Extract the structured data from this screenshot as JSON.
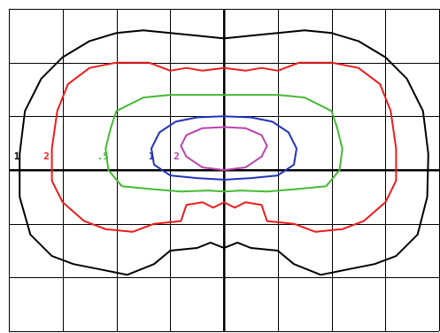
{
  "chart_data": {
    "type": "contour",
    "grid": true,
    "xlim": [
      -4,
      4
    ],
    "ylim": [
      -3,
      3
    ],
    "x_gridlines": [
      -4,
      -3,
      -2,
      -1,
      0,
      1,
      2,
      3,
      4
    ],
    "y_gridlines": [
      -3,
      -2,
      -1,
      0,
      1,
      2,
      3
    ],
    "levels": [
      {
        "label": "1",
        "color": "#000000",
        "label_at": [
          -3.85,
          0.2
        ],
        "points": [
          [
            0.0,
            2.45
          ],
          [
            0.5,
            2.5
          ],
          [
            1.0,
            2.55
          ],
          [
            1.5,
            2.6
          ],
          [
            2.0,
            2.55
          ],
          [
            2.5,
            2.4
          ],
          [
            3.0,
            2.1
          ],
          [
            3.4,
            1.7
          ],
          [
            3.7,
            1.1
          ],
          [
            3.8,
            0.3
          ],
          [
            3.78,
            -0.5
          ],
          [
            3.6,
            -1.2
          ],
          [
            3.2,
            -1.6
          ],
          [
            2.8,
            -1.75
          ],
          [
            2.3,
            -1.85
          ],
          [
            1.8,
            -1.95
          ],
          [
            1.3,
            -1.75
          ],
          [
            1.0,
            -1.5
          ],
          [
            0.5,
            -1.45
          ],
          [
            0.25,
            -1.35
          ],
          [
            0.0,
            -1.45
          ],
          [
            -0.25,
            -1.35
          ],
          [
            -0.5,
            -1.45
          ],
          [
            -1.0,
            -1.5
          ],
          [
            -1.3,
            -1.75
          ],
          [
            -1.8,
            -1.95
          ],
          [
            -2.3,
            -1.85
          ],
          [
            -2.8,
            -1.75
          ],
          [
            -3.2,
            -1.6
          ],
          [
            -3.6,
            -1.2
          ],
          [
            -3.8,
            -0.5
          ],
          [
            -3.8,
            0.3
          ],
          [
            -3.7,
            1.1
          ],
          [
            -3.4,
            1.7
          ],
          [
            -3.0,
            2.1
          ],
          [
            -2.5,
            2.4
          ],
          [
            -2.0,
            2.55
          ],
          [
            -1.5,
            2.6
          ],
          [
            -1.0,
            2.55
          ],
          [
            -0.5,
            2.5
          ],
          [
            0.0,
            2.45
          ]
        ]
      },
      {
        "label": "2",
        "color": "#ee1c1c",
        "label_at": [
          -3.3,
          0.2
        ],
        "points": [
          [
            0.0,
            1.9
          ],
          [
            0.4,
            1.85
          ],
          [
            0.7,
            1.9
          ],
          [
            1.0,
            1.85
          ],
          [
            1.4,
            2.0
          ],
          [
            2.0,
            2.0
          ],
          [
            2.5,
            1.9
          ],
          [
            2.9,
            1.6
          ],
          [
            3.1,
            1.1
          ],
          [
            3.2,
            0.4
          ],
          [
            3.2,
            -0.2
          ],
          [
            3.0,
            -0.6
          ],
          [
            2.6,
            -0.95
          ],
          [
            2.2,
            -1.1
          ],
          [
            1.7,
            -1.15
          ],
          [
            1.3,
            -1.0
          ],
          [
            0.8,
            -0.95
          ],
          [
            0.7,
            -0.65
          ],
          [
            0.4,
            -0.6
          ],
          [
            0.2,
            -0.7
          ],
          [
            0.0,
            -0.6
          ],
          [
            -0.2,
            -0.7
          ],
          [
            -0.4,
            -0.6
          ],
          [
            -0.7,
            -0.65
          ],
          [
            -0.8,
            -0.95
          ],
          [
            -1.3,
            -1.0
          ],
          [
            -1.7,
            -1.15
          ],
          [
            -2.2,
            -1.1
          ],
          [
            -2.6,
            -0.95
          ],
          [
            -3.0,
            -0.6
          ],
          [
            -3.2,
            -0.2
          ],
          [
            -3.2,
            0.4
          ],
          [
            -3.1,
            1.1
          ],
          [
            -2.9,
            1.6
          ],
          [
            -2.5,
            1.9
          ],
          [
            -2.0,
            2.0
          ],
          [
            -1.4,
            2.0
          ],
          [
            -1.0,
            1.85
          ],
          [
            -0.7,
            1.9
          ],
          [
            -0.4,
            1.85
          ],
          [
            0.0,
            1.9
          ]
        ]
      },
      {
        "label": ".5",
        "color": "#44bb33",
        "label_at": [
          -2.25,
          0.2
        ],
        "points": [
          [
            0.0,
            1.4
          ],
          [
            0.5,
            1.4
          ],
          [
            1.0,
            1.4
          ],
          [
            1.5,
            1.35
          ],
          [
            2.0,
            1.1
          ],
          [
            2.1,
            0.8
          ],
          [
            2.2,
            0.4
          ],
          [
            2.15,
            0.0
          ],
          [
            1.9,
            -0.3
          ],
          [
            1.4,
            -0.35
          ],
          [
            0.8,
            -0.4
          ],
          [
            0.3,
            -0.38
          ],
          [
            0.0,
            -0.4
          ],
          [
            -0.3,
            -0.38
          ],
          [
            -0.8,
            -0.4
          ],
          [
            -1.4,
            -0.35
          ],
          [
            -1.9,
            -0.3
          ],
          [
            -2.15,
            0.0
          ],
          [
            -2.2,
            0.4
          ],
          [
            -2.1,
            0.8
          ],
          [
            -2.0,
            1.1
          ],
          [
            -1.5,
            1.35
          ],
          [
            -1.0,
            1.4
          ],
          [
            -0.5,
            1.4
          ],
          [
            0.0,
            1.4
          ]
        ]
      },
      {
        "label": "1",
        "color": "#2233bb",
        "label_at": [
          -1.35,
          0.2
        ],
        "points": [
          [
            0.0,
            1.0
          ],
          [
            0.5,
            0.98
          ],
          [
            0.9,
            0.9
          ],
          [
            1.2,
            0.7
          ],
          [
            1.35,
            0.4
          ],
          [
            1.3,
            0.1
          ],
          [
            1.0,
            -0.1
          ],
          [
            0.5,
            -0.15
          ],
          [
            0.0,
            -0.18
          ],
          [
            -0.5,
            -0.15
          ],
          [
            -1.0,
            -0.1
          ],
          [
            -1.3,
            0.1
          ],
          [
            -1.35,
            0.4
          ],
          [
            -1.2,
            0.7
          ],
          [
            -0.9,
            0.9
          ],
          [
            -0.5,
            0.98
          ],
          [
            0.0,
            1.0
          ]
        ]
      },
      {
        "label": "2",
        "color": "#bb44aa",
        "label_at": [
          -0.88,
          0.2
        ],
        "points": [
          [
            0.0,
            0.8
          ],
          [
            0.4,
            0.78
          ],
          [
            0.7,
            0.65
          ],
          [
            0.8,
            0.45
          ],
          [
            0.7,
            0.25
          ],
          [
            0.4,
            0.05
          ],
          [
            0.0,
            0.0
          ],
          [
            -0.4,
            0.05
          ],
          [
            -0.7,
            0.25
          ],
          [
            -0.8,
            0.45
          ],
          [
            -0.7,
            0.65
          ],
          [
            -0.4,
            0.78
          ],
          [
            0.0,
            0.8
          ]
        ]
      }
    ]
  }
}
